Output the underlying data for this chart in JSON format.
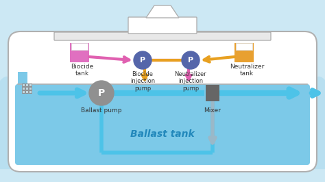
{
  "bg_color": "#cce8f4",
  "water_color": "#7cc9e8",
  "water_light": "#b8dff0",
  "ship_hull_color": "#ffffff",
  "ship_outline_color": "#b0b0b0",
  "deck_color": "#e8e8e8",
  "blue_flow_color": "#4dc3e8",
  "pink_flow_color": "#e060b0",
  "orange_flow_color": "#e8a020",
  "gray_flow_color": "#9ab8c8",
  "biocide_tank_color": "#e070c0",
  "neutralizer_tank_color": "#e8a030",
  "pump_small_color": "#5566aa",
  "ballast_pump_color": "#909090",
  "mixer_color": "#666666",
  "grid_color": "#909090",
  "text_color": "#333333",
  "ballast_tank_text_color": "#2288bb",
  "labels": {
    "biocide_tank": "Biocide\ntank",
    "biocide_pump": "Biocide\ninjection\npump",
    "neutralizer_pump": "Neutralizer\ninjection\npump",
    "neutralizer_tank": "Neutralizer\ntank",
    "ballast_pump": "Ballast pump",
    "mixer": "Mixer",
    "ballast_tank": "Ballast tank"
  },
  "figsize": [
    4.74,
    2.66
  ],
  "dpi": 100
}
